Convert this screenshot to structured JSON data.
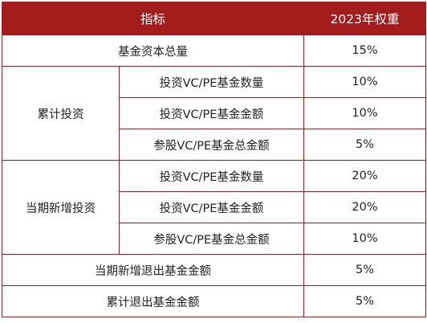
{
  "header": {
    "indicator": "指标",
    "weight": "2023年权重"
  },
  "rows": {
    "total_fund_capital": {
      "label": "基金资本总量",
      "weight": "15%"
    },
    "cumulative": {
      "group": "累计投资",
      "items": [
        {
          "label": "投资VC/PE基金数量",
          "weight": "10%"
        },
        {
          "label": "投资VC/PE基金金额",
          "weight": "10%"
        },
        {
          "label": "参股VC/PE基金总金额",
          "weight": "5%"
        }
      ]
    },
    "current": {
      "group": "当期新增投资",
      "items": [
        {
          "label": "投资VC/PE基金数量",
          "weight": "20%"
        },
        {
          "label": "投资VC/PE基金金额",
          "weight": "20%"
        },
        {
          "label": "参股VC/PE基金总金额",
          "weight": "10%"
        }
      ]
    },
    "current_exit": {
      "label": "当期新增退出基金金额",
      "weight": "5%"
    },
    "cumulative_exit": {
      "label": "累计退出基金金额",
      "weight": "5%"
    }
  }
}
